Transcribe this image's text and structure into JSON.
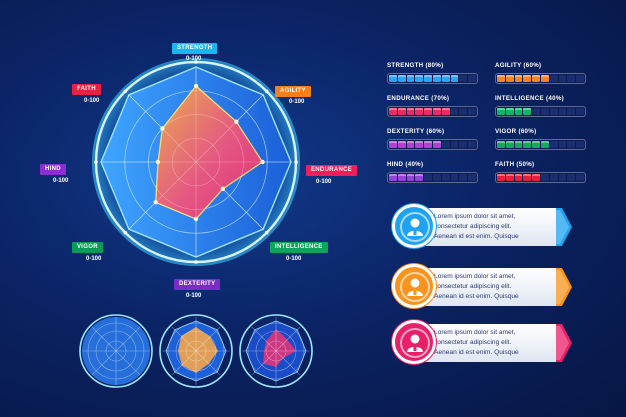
{
  "chart_data": {
    "type": "radar",
    "axes": [
      "STRENGTH",
      "AGILITY",
      "ENDURANCE",
      "INTELLIGENCE",
      "DEXTERITY",
      "VIGOR",
      "HIND",
      "FAITH"
    ],
    "range_label": "0-100",
    "values": [
      80,
      60,
      70,
      40,
      60,
      60,
      40,
      50
    ]
  },
  "axis_tags": [
    {
      "label": "STRENGTH",
      "color": "#19b6f0",
      "range": "0-100"
    },
    {
      "label": "AGILITY",
      "color": "#f57f1b",
      "range": "0-100"
    },
    {
      "label": "ENDURANCE",
      "color": "#ef1d5a",
      "range": "0-100"
    },
    {
      "label": "INTELLIGENCE",
      "color": "#0fa35b",
      "range": "0-100"
    },
    {
      "label": "DEXTERITY",
      "color": "#7b2cc4",
      "range": "0-100"
    },
    {
      "label": "VIGOR",
      "color": "#0c9a58",
      "range": "0-100"
    },
    {
      "label": "HIND",
      "color": "#8a2fd0",
      "range": "0-100"
    },
    {
      "label": "FAITH",
      "color": "#e8213f",
      "range": "0-100"
    }
  ],
  "skills": [
    {
      "label": "STRENGTH (80%)",
      "value": 80,
      "color": "#2aa5f2"
    },
    {
      "label": "AGILITY (60%)",
      "value": 60,
      "color": "#f5851f"
    },
    {
      "label": "ENDURANCE (70%)",
      "value": 70,
      "color": "#ec2a66"
    },
    {
      "label": "INTELLIGENCE (40%)",
      "value": 40,
      "color": "#16b46a"
    },
    {
      "label": "DEXTERITY (60%)",
      "value": 60,
      "color": "#b53fd6"
    },
    {
      "label": "VIGOR (60%)",
      "value": 60,
      "color": "#13a95f"
    },
    {
      "label": "HIND (40%)",
      "value": 40,
      "color": "#9b3fe0"
    },
    {
      "label": "FAITH (50%)",
      "value": 50,
      "color": "#e8203e"
    }
  ],
  "cards": [
    {
      "line1": "Lorem ipsum dolor sit amet,",
      "line2": "consectetur adipiscing elit.",
      "line3": "Aenean id est enim. Quisque",
      "color": "#1fa2f0",
      "icon": "person-icon"
    },
    {
      "line1": "Lorem ipsum dolor sit amet,",
      "line2": "consectetur adipiscing elit.",
      "line3": "Aenean id est enim. Quisque",
      "color": "#f7941d",
      "icon": "person-icon"
    },
    {
      "line1": "Lorem ipsum dolor sit amet,",
      "line2": "consectetur adipiscing elit.",
      "line3": "Aenean id est enim. Quisque",
      "color": "#e8206a",
      "icon": "person-icon"
    }
  ],
  "mini_radars": [
    {
      "fill": "#2c7df0",
      "icon": "radar-grid-icon"
    },
    {
      "fill": "#f5a64a",
      "icon": "radar-grid-icon"
    },
    {
      "fill": "#e0357a",
      "icon": "radar-grid-icon"
    }
  ]
}
